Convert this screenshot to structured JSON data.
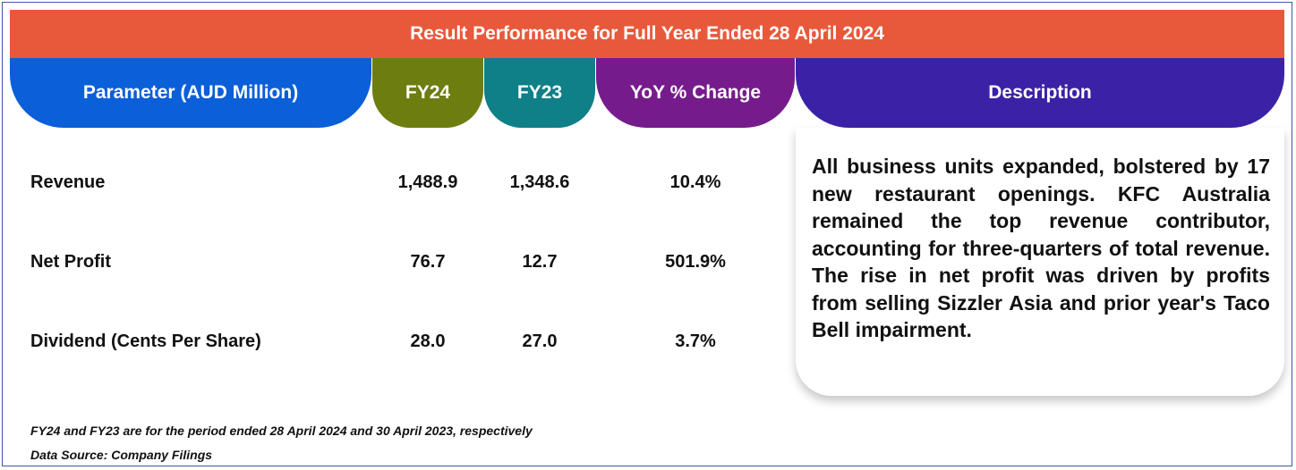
{
  "title": "Result Performance for Full Year Ended 28 April 2024",
  "headers": {
    "parameter": "Parameter (AUD Million)",
    "fy24": "FY24",
    "fy23": "FY23",
    "yoy": "YoY % Change",
    "description": "Description"
  },
  "rows": [
    {
      "label": "Revenue",
      "fy24": "1,488.9",
      "fy23": "1,348.6",
      "yoy": "10.4%"
    },
    {
      "label": "Net Profit",
      "fy24": "76.7",
      "fy23": "12.7",
      "yoy": "501.9%"
    },
    {
      "label": "Dividend (Cents Per Share)",
      "fy24": "28.0",
      "fy23": "27.0",
      "yoy": "3.7%"
    }
  ],
  "description": "All business units expanded, bolstered by 17 new restaurant openings. KFC Australia remained the top revenue contributor, accounting for three-quarters of total revenue. The rise in net profit was driven by profits from selling Sizzler Asia and prior year's Taco Bell impairment.",
  "footnotes": {
    "period_note": "FY24 and FY23 are for the period ended 28 April 2024 and 30 April 2023, respectively",
    "source": "Data Source: Company Filings"
  },
  "colors": {
    "title_bar": "#e8593b",
    "parameter_header": "#0b5fd8",
    "fy24_header": "#6e7d10",
    "fy23_header": "#0f7f88",
    "yoy_header": "#761b8c",
    "description_header": "#3a21a6"
  }
}
